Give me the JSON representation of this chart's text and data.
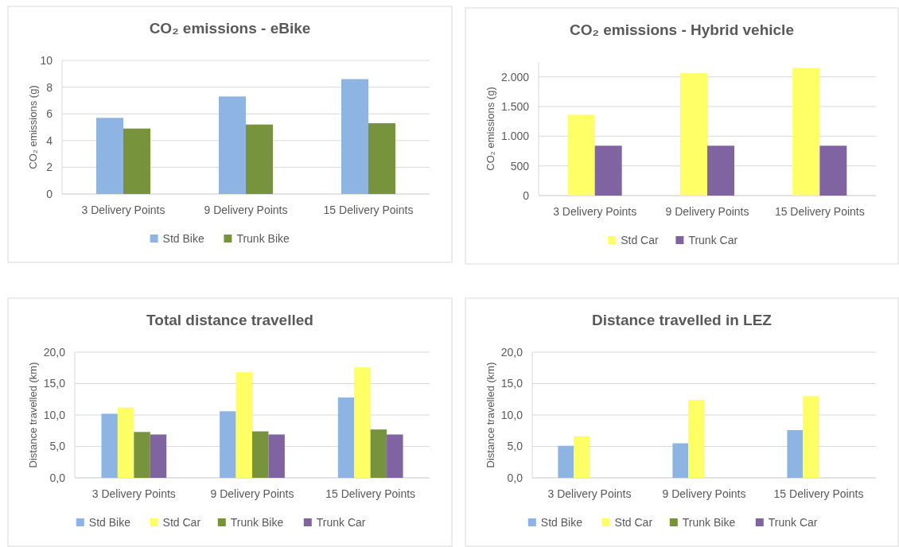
{
  "chart_data": [
    {
      "type": "bar",
      "title": "CO₂ emissions - eBike",
      "ylabel": "CO₂ emissions (g)",
      "categories": [
        "3 Delivery Points",
        "9 Delivery Points",
        "15 Delivery Points"
      ],
      "series": [
        {
          "name": "Std Bike",
          "color": "#8eb4e3",
          "values": [
            5.7,
            7.3,
            8.6
          ]
        },
        {
          "name": "Trunk Bike",
          "color": "#77933c",
          "values": [
            4.9,
            5.2,
            5.3
          ]
        }
      ],
      "ylim": [
        0,
        10
      ],
      "yticks": [
        0,
        2,
        4,
        6,
        8,
        10
      ],
      "grid": "y",
      "legend": "bottom"
    },
    {
      "type": "bar",
      "title": "CO₂ emissions - Hybrid vehicle",
      "ylabel": "CO₂ emissions (g)",
      "categories": [
        "3 Delivery Points",
        "9 Delivery Points",
        "15 Delivery Points"
      ],
      "series": [
        {
          "name": "Std Car",
          "color": "#ffff66",
          "values": [
            1360,
            2060,
            2150
          ]
        },
        {
          "name": "Trunk Car",
          "color": "#8064a2",
          "values": [
            840,
            840,
            840
          ]
        }
      ],
      "ylim": [
        0,
        2250
      ],
      "yticks": [
        0,
        500,
        {
          "value": 1000,
          "label": "1.000"
        },
        {
          "value": 1500,
          "label": "1.500"
        },
        {
          "value": 2000,
          "label": "2.000"
        }
      ],
      "grid": "y",
      "legend": "bottom"
    },
    {
      "type": "bar",
      "title": "Total distance travelled",
      "ylabel": "Distance travelled  (km)",
      "categories": [
        "3 Delivery Points",
        "9 Delivery Points",
        "15 Delivery Points"
      ],
      "series": [
        {
          "name": "Std Bike",
          "color": "#8eb4e3",
          "values": [
            10.2,
            10.6,
            12.8
          ]
        },
        {
          "name": "Std Car",
          "color": "#ffff66",
          "values": [
            11.2,
            16.8,
            17.6
          ]
        },
        {
          "name": "Trunk Bike",
          "color": "#77933c",
          "values": [
            7.3,
            7.4,
            7.7
          ]
        },
        {
          "name": "Trunk Car",
          "color": "#8064a2",
          "values": [
            6.9,
            6.9,
            6.9
          ]
        }
      ],
      "ylim": [
        0,
        20
      ],
      "yticks": [
        {
          "value": 0,
          "label": "0,0"
        },
        {
          "value": 5,
          "label": "5,0"
        },
        {
          "value": 10,
          "label": "10,0"
        },
        {
          "value": 15,
          "label": "15,0"
        },
        {
          "value": 20,
          "label": "20,0"
        }
      ],
      "grid": "y",
      "legend": "bottom"
    },
    {
      "type": "bar",
      "title": "Distance travelled in LEZ",
      "ylabel": "Distance travelled  (km)",
      "categories": [
        "3 Delivery Points",
        "9 Delivery Points",
        "15 Delivery Points"
      ],
      "series": [
        {
          "name": "Std Bike",
          "color": "#8eb4e3",
          "values": [
            5.1,
            5.5,
            7.6
          ]
        },
        {
          "name": "Std Car",
          "color": "#ffff66",
          "values": [
            6.6,
            12.4,
            13.0
          ]
        },
        {
          "name": "Trunk Bike",
          "color": "#77933c",
          "values": [
            0,
            0,
            0
          ]
        },
        {
          "name": "Trunk Car",
          "color": "#8064a2",
          "values": [
            0,
            0,
            0
          ]
        }
      ],
      "ylim": [
        0,
        20
      ],
      "yticks": [
        {
          "value": 0,
          "label": "0,0"
        },
        {
          "value": 5,
          "label": "5,0"
        },
        {
          "value": 10,
          "label": "10,0"
        },
        {
          "value": 15,
          "label": "15,0"
        },
        {
          "value": 20,
          "label": "20,0"
        }
      ],
      "grid": "y",
      "legend": "bottom"
    }
  ]
}
